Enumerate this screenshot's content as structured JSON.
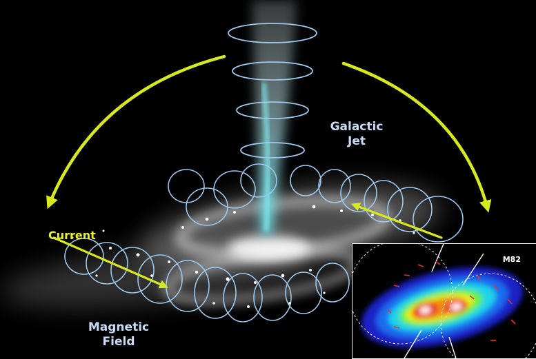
{
  "labels": {
    "jet_line1": "Galactic",
    "jet_line2": "Jet",
    "current": "Current",
    "field_line1": "Magnetic",
    "field_line2": "Field"
  },
  "inset": {
    "label": "M82"
  },
  "colors": {
    "background": "#000000",
    "field_lines": "#9ec9ee",
    "current_arrows": "#d8ea1c",
    "jet": "#8fd8e0",
    "label_text": "#c9dcf6",
    "current_text": "#ecf02a"
  }
}
